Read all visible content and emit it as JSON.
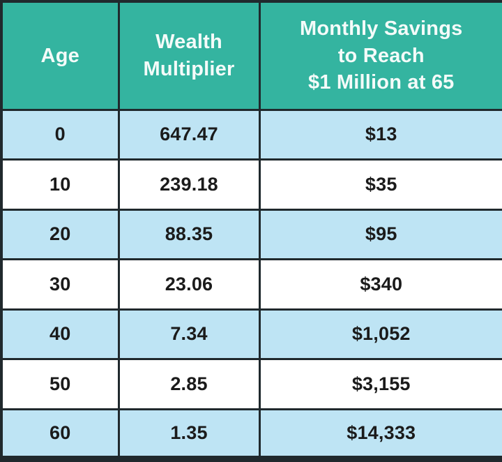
{
  "table": {
    "header": {
      "age": "Age",
      "multiplier": "Wealth\nMultiplier",
      "savings": "Monthly Savings\nto Reach\n$1 Million at 65"
    },
    "rows": [
      {
        "age": "0",
        "multiplier": "647.47",
        "savings": "$13"
      },
      {
        "age": "10",
        "multiplier": "239.18",
        "savings": "$35"
      },
      {
        "age": "20",
        "multiplier": "88.35",
        "savings": "$95"
      },
      {
        "age": "30",
        "multiplier": "23.06",
        "savings": "$340"
      },
      {
        "age": "40",
        "multiplier": "7.34",
        "savings": "$1,052"
      },
      {
        "age": "50",
        "multiplier": "2.85",
        "savings": "$3,155"
      },
      {
        "age": "60",
        "multiplier": "1.35",
        "savings": "$14,333"
      }
    ]
  },
  "colors": {
    "header_bg": "#34b4a0",
    "row_alt_bg": "#bee4f4",
    "row_bg": "#ffffff",
    "border": "#20292d",
    "header_text": "#f4fbf9",
    "body_text": "#1b1b1b"
  },
  "chart_data": {
    "type": "table",
    "title": "",
    "columns": [
      "Age",
      "Wealth Multiplier",
      "Monthly Savings to Reach $1 Million at 65"
    ],
    "rows": [
      [
        0,
        647.47,
        "$13"
      ],
      [
        10,
        239.18,
        "$35"
      ],
      [
        20,
        88.35,
        "$95"
      ],
      [
        30,
        23.06,
        "$340"
      ],
      [
        40,
        7.34,
        "$1,052"
      ],
      [
        50,
        2.85,
        "$3,155"
      ],
      [
        60,
        1.35,
        "$14,333"
      ]
    ],
    "layout_hints": {
      "header_fill": "teal",
      "row_striping": "alternating light-blue/white starting with light-blue",
      "grid": "on, dark heavy borders"
    }
  }
}
